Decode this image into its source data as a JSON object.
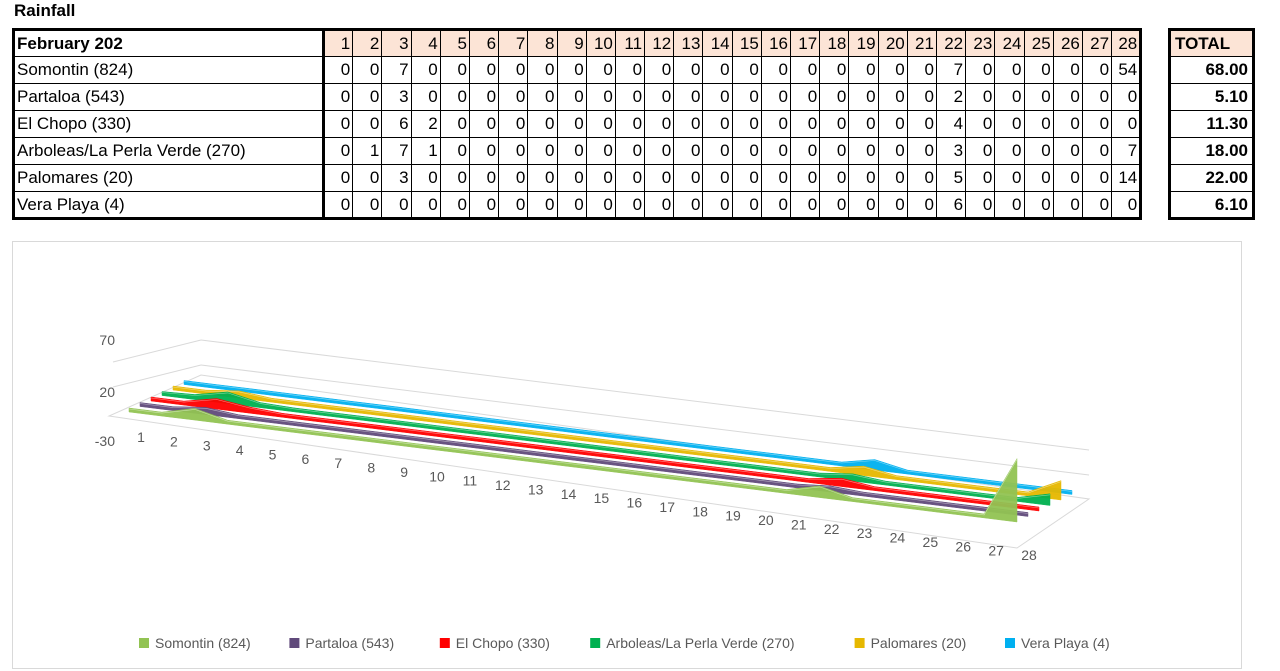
{
  "title": "Rainfall",
  "table": {
    "month_label": "February 202",
    "days": [
      "1",
      "2",
      "3",
      "4",
      "5",
      "6",
      "7",
      "8",
      "9",
      "10",
      "11",
      "12",
      "13",
      "14",
      "15",
      "16",
      "17",
      "18",
      "19",
      "20",
      "21",
      "22",
      "23",
      "24",
      "25",
      "26",
      "27",
      "28"
    ],
    "total_label": "TOTAL",
    "rows": [
      {
        "location": "Somontin (824)",
        "values": [
          "0",
          "0",
          "7",
          "0",
          "0",
          "0",
          "0",
          "0",
          "0",
          "0",
          "0",
          "0",
          "0",
          "0",
          "0",
          "0",
          "0",
          "0",
          "0",
          "0",
          "0",
          "7",
          "0",
          "0",
          "0",
          "0",
          "0",
          "54"
        ],
        "total": "68.00"
      },
      {
        "location": "Partaloa (543)",
        "values": [
          "0",
          "0",
          "3",
          "0",
          "0",
          "0",
          "0",
          "0",
          "0",
          "0",
          "0",
          "0",
          "0",
          "0",
          "0",
          "0",
          "0",
          "0",
          "0",
          "0",
          "0",
          "2",
          "0",
          "0",
          "0",
          "0",
          "0",
          "0"
        ],
        "total": "5.10"
      },
      {
        "location": "El Chopo (330)",
        "values": [
          "0",
          "0",
          "6",
          "2",
          "0",
          "0",
          "0",
          "0",
          "0",
          "0",
          "0",
          "0",
          "0",
          "0",
          "0",
          "0",
          "0",
          "0",
          "0",
          "0",
          "0",
          "4",
          "0",
          "0",
          "0",
          "0",
          "0",
          "0"
        ],
        "total": "11.30"
      },
      {
        "location": "Arboleas/La Perla Verde (270)",
        "values": [
          "0",
          "1",
          "7",
          "1",
          "0",
          "0",
          "0",
          "0",
          "0",
          "0",
          "0",
          "0",
          "0",
          "0",
          "0",
          "0",
          "0",
          "0",
          "0",
          "0",
          "0",
          "3",
          "0",
          "0",
          "0",
          "0",
          "0",
          "7"
        ],
        "total": "18.00"
      },
      {
        "location": "Palomares (20)",
        "values": [
          "0",
          "0",
          "3",
          "0",
          "0",
          "0",
          "0",
          "0",
          "0",
          "0",
          "0",
          "0",
          "0",
          "0",
          "0",
          "0",
          "0",
          "0",
          "0",
          "0",
          "0",
          "5",
          "0",
          "0",
          "0",
          "0",
          "0",
          "14"
        ],
        "total": "22.00"
      },
      {
        "location": "Vera Playa (4)",
        "values": [
          "0",
          "0",
          "0",
          "0",
          "0",
          "0",
          "0",
          "0",
          "0",
          "0",
          "0",
          "0",
          "0",
          "0",
          "0",
          "0",
          "0",
          "0",
          "0",
          "0",
          "0",
          "6",
          "0",
          "0",
          "0",
          "0",
          "0",
          "0"
        ],
        "total": "6.10"
      }
    ]
  },
  "chart_data": {
    "type": "area",
    "categories": [
      "1",
      "2",
      "3",
      "4",
      "5",
      "6",
      "7",
      "8",
      "9",
      "10",
      "11",
      "12",
      "13",
      "14",
      "15",
      "16",
      "17",
      "18",
      "19",
      "20",
      "21",
      "22",
      "23",
      "24",
      "25",
      "26",
      "27",
      "28"
    ],
    "yticks": [
      "70",
      "20",
      "-30"
    ],
    "ylim": [
      -30,
      70
    ],
    "legend_position": "bottom",
    "series": [
      {
        "name": "Somontin (824)",
        "color": "#92c353",
        "values": [
          0,
          0,
          7,
          0,
          0,
          0,
          0,
          0,
          0,
          0,
          0,
          0,
          0,
          0,
          0,
          0,
          0,
          0,
          0,
          0,
          0,
          7,
          0,
          0,
          0,
          0,
          0,
          54
        ]
      },
      {
        "name": "Partaloa (543)",
        "color": "#604a7b",
        "values": [
          0,
          0,
          3,
          0,
          0,
          0,
          0,
          0,
          0,
          0,
          0,
          0,
          0,
          0,
          0,
          0,
          0,
          0,
          0,
          0,
          0,
          2,
          0,
          0,
          0,
          0,
          0,
          0
        ]
      },
      {
        "name": "El Chopo (330)",
        "color": "#ff0000",
        "values": [
          0,
          0,
          6,
          2,
          0,
          0,
          0,
          0,
          0,
          0,
          0,
          0,
          0,
          0,
          0,
          0,
          0,
          0,
          0,
          0,
          0,
          4,
          0,
          0,
          0,
          0,
          0,
          0
        ]
      },
      {
        "name": "Arboleas/La Perla Verde (270)",
        "color": "#00b050",
        "values": [
          0,
          1,
          7,
          1,
          0,
          0,
          0,
          0,
          0,
          0,
          0,
          0,
          0,
          0,
          0,
          0,
          0,
          0,
          0,
          0,
          0,
          3,
          0,
          0,
          0,
          0,
          0,
          7
        ]
      },
      {
        "name": "Palomares (20)",
        "color": "#e6b800",
        "values": [
          0,
          0,
          3,
          0,
          0,
          0,
          0,
          0,
          0,
          0,
          0,
          0,
          0,
          0,
          0,
          0,
          0,
          0,
          0,
          0,
          0,
          5,
          0,
          0,
          0,
          0,
          0,
          14
        ]
      },
      {
        "name": "Vera Playa (4)",
        "color": "#00b0f0",
        "values": [
          0,
          0,
          0,
          0,
          0,
          0,
          0,
          0,
          0,
          0,
          0,
          0,
          0,
          0,
          0,
          0,
          0,
          0,
          0,
          0,
          0,
          6,
          0,
          0,
          0,
          0,
          0,
          0
        ]
      }
    ]
  }
}
